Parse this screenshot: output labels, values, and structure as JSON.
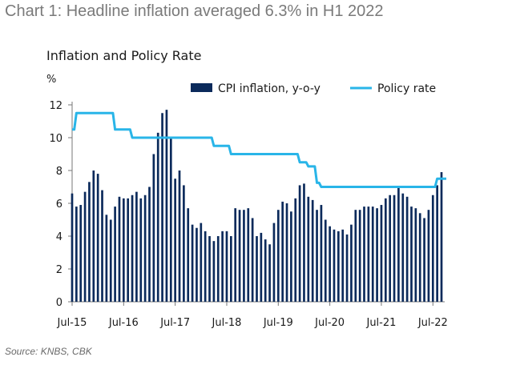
{
  "heading": "Chart 1: Headline inflation averaged 6.3% in H1 2022",
  "source": "Source: KNBS, CBK",
  "chart_data": {
    "type": "bar",
    "title": "Inflation and Policy Rate",
    "ylabel": "%",
    "ylim": [
      0,
      12
    ],
    "yticks": [
      0,
      2,
      4,
      6,
      8,
      10,
      12
    ],
    "xtick_labels": [
      "Jul-15",
      "Jul-16",
      "Jul-17",
      "Jul-18",
      "Jul-19",
      "Jul-20",
      "Jul-21",
      "Jul-22"
    ],
    "legend_position": "top-right",
    "grid": false,
    "x_start": "Jul-15",
    "x_end": "Jul-22",
    "series": [
      {
        "name": "CPI inflation, y-o-y",
        "kind": "bar",
        "color": "#0b2a5b",
        "values": [
          6.6,
          5.8,
          5.9,
          6.7,
          7.3,
          8.0,
          7.8,
          6.8,
          5.3,
          5.0,
          5.8,
          6.4,
          6.3,
          6.3,
          6.5,
          6.7,
          6.3,
          6.5,
          7.0,
          9.0,
          10.3,
          11.5,
          11.7,
          10.0,
          7.5,
          8.0,
          7.1,
          5.7,
          4.7,
          4.5,
          4.8,
          4.3,
          4.0,
          3.7,
          4.0,
          4.3,
          4.3,
          4.0,
          5.7,
          5.6,
          5.6,
          5.7,
          5.1,
          4.0,
          4.2,
          3.8,
          3.5,
          4.8,
          5.6,
          6.1,
          6.0,
          5.5,
          6.3,
          7.1,
          7.2,
          6.4,
          6.2,
          5.6,
          5.9,
          5.0,
          4.6,
          4.4,
          4.3,
          4.4,
          4.1,
          4.7,
          5.6,
          5.6,
          5.8,
          5.8,
          5.8,
          5.7,
          5.9,
          6.3,
          6.5,
          6.5,
          7.0,
          6.6,
          6.4,
          5.8,
          5.7,
          5.4,
          5.1,
          5.6,
          6.5,
          7.1,
          7.9
        ]
      },
      {
        "name": "Policy rate",
        "kind": "line",
        "color": "#29b5e8",
        "values": [
          10.5,
          11.5,
          11.5,
          11.5,
          11.5,
          11.5,
          11.5,
          11.5,
          11.5,
          11.5,
          10.5,
          10.5,
          10.5,
          10.5,
          10.0,
          10.0,
          10.0,
          10.0,
          10.0,
          10.0,
          10.0,
          10.0,
          10.0,
          10.0,
          10.0,
          10.0,
          10.0,
          10.0,
          10.0,
          10.0,
          10.0,
          10.0,
          10.0,
          9.5,
          9.5,
          9.5,
          9.5,
          9.0,
          9.0,
          9.0,
          9.0,
          9.0,
          9.0,
          9.0,
          9.0,
          9.0,
          9.0,
          9.0,
          9.0,
          9.0,
          9.0,
          9.0,
          9.0,
          8.5,
          8.5,
          8.25,
          8.25,
          7.25,
          7.0,
          7.0,
          7.0,
          7.0,
          7.0,
          7.0,
          7.0,
          7.0,
          7.0,
          7.0,
          7.0,
          7.0,
          7.0,
          7.0,
          7.0,
          7.0,
          7.0,
          7.0,
          7.0,
          7.0,
          7.0,
          7.0,
          7.0,
          7.0,
          7.0,
          7.0,
          7.0,
          7.5,
          7.5,
          7.5
        ]
      }
    ]
  }
}
